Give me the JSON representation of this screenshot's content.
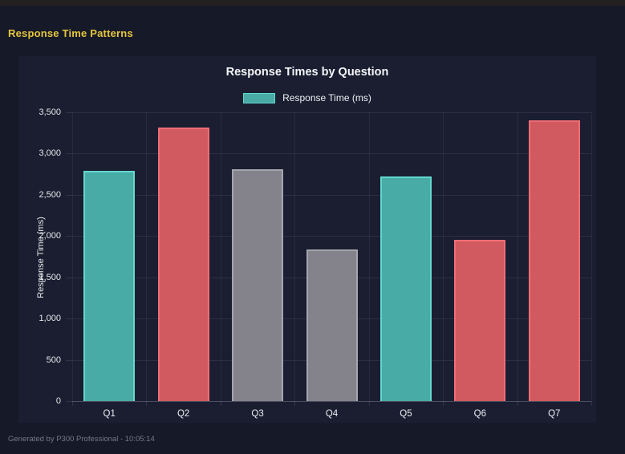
{
  "page": {
    "header_title": "Response Time Patterns",
    "footer": "Generated by P300 Professional - 10:05:14"
  },
  "colors": {
    "page_bg": "#161928",
    "topbar_bg": "#232120",
    "panel_bg": "#1b1e31",
    "header_yellow": "#e5c63d",
    "title_text": "#f4f5f7",
    "tick_text": "#e6e7ea",
    "footer_text": "#767a86",
    "teal": "#48aba5",
    "teal_border": "#63d8cd",
    "red": "#d15a60",
    "red_border": "#ee6d74",
    "gray": "#84838c",
    "gray_border": "#a6a5ae"
  },
  "chart_data": {
    "type": "bar",
    "title": "Response Times by Question",
    "legend_label": "Response Time (ms)",
    "legend_position": "top",
    "legend_swatch_color": "#48aba5",
    "categories": [
      "Q1",
      "Q2",
      "Q3",
      "Q4",
      "Q5",
      "Q6",
      "Q7"
    ],
    "values": [
      2790,
      3320,
      2805,
      1840,
      2720,
      1955,
      3400
    ],
    "bar_color_names": [
      "teal",
      "red",
      "gray",
      "gray",
      "teal",
      "red",
      "red"
    ],
    "bar_fill_colors": [
      "#48aba5",
      "#d15a60",
      "#84838c",
      "#84838c",
      "#48aba5",
      "#d15a60",
      "#d15a60"
    ],
    "bar_border_colors": [
      "#63d8cd",
      "#ee6d74",
      "#a6a5ae",
      "#a6a5ae",
      "#63d8cd",
      "#ee6d74",
      "#ee6d74"
    ],
    "xlabel": "",
    "ylabel": "Response Time (ms)",
    "ylim": [
      0,
      3500
    ],
    "ytick_step": 500,
    "ytick_labels": [
      "0",
      "500",
      "1,000",
      "1,500",
      "2,000",
      "2,500",
      "3,000",
      "3,500"
    ],
    "grid": true
  }
}
